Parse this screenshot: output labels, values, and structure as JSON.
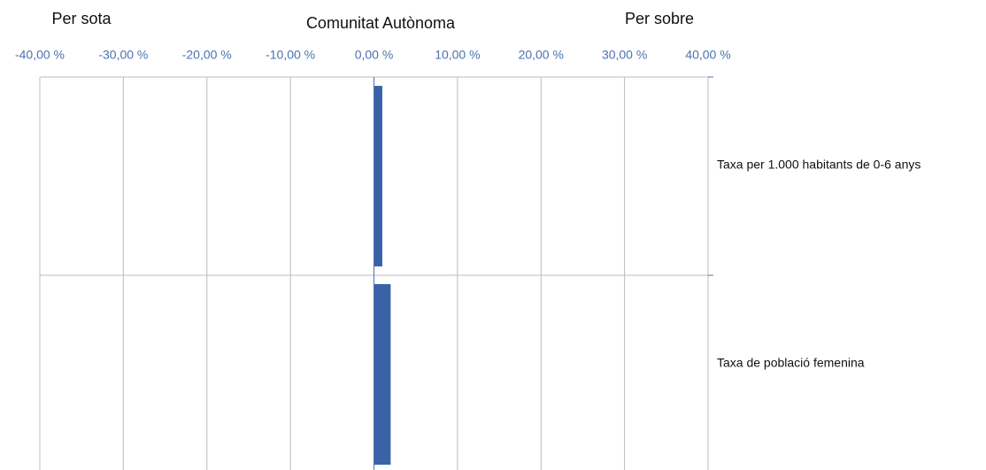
{
  "chart_data": {
    "type": "hbar",
    "annotations": [
      "Per sota",
      "Comunitat Autònoma",
      "Per sobre"
    ],
    "categories": [
      "Taxa per 1.000 habitants de 0-6 anys",
      "Taxa de població femenina"
    ],
    "values": [
      1.0,
      2.0
    ],
    "color": "#3a63a6",
    "xlim": [
      -40,
      40
    ],
    "xticks": [
      {
        "value": -40,
        "label": "-40,00 %"
      },
      {
        "value": -30,
        "label": "-30,00 %"
      },
      {
        "value": -20,
        "label": "-20,00 %"
      },
      {
        "value": -10,
        "label": "-10,00 %"
      },
      {
        "value": 0,
        "label": "0,00 %"
      },
      {
        "value": 10,
        "label": "10,00 %"
      },
      {
        "value": 20,
        "label": "20,00 %"
      },
      {
        "value": 30,
        "label": "30,00 %"
      },
      {
        "value": 40,
        "label": "40,00 %"
      }
    ],
    "grid": true
  }
}
